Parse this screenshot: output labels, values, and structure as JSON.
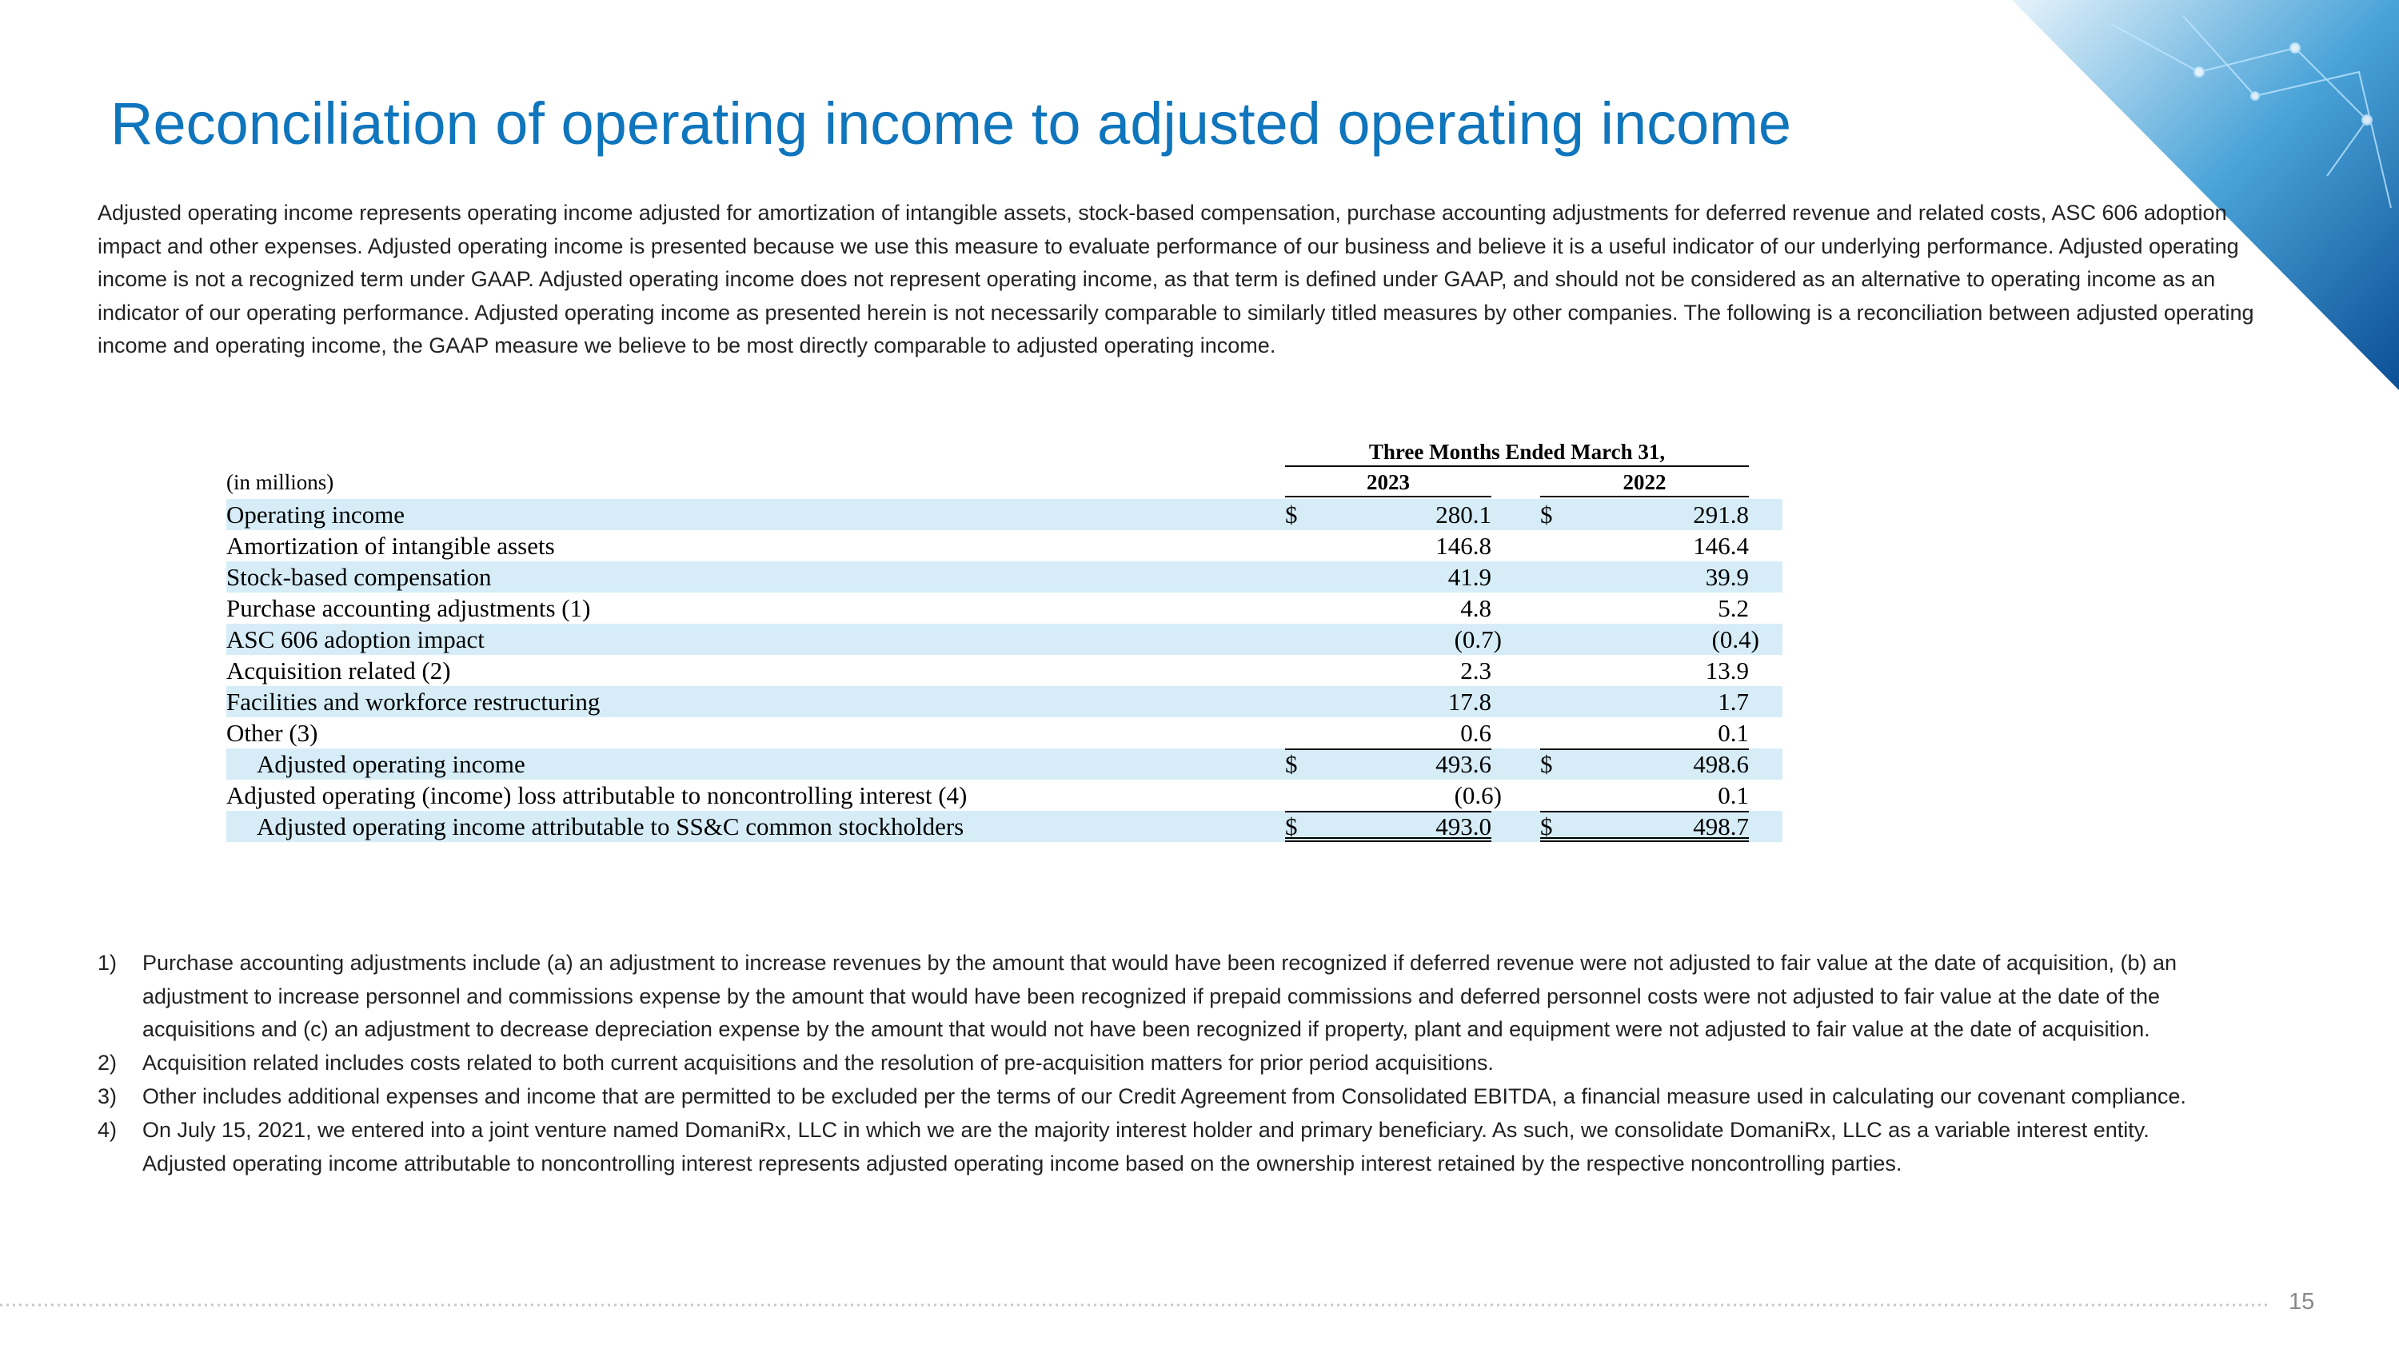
{
  "title": "Reconciliation of operating income to adjusted operating income",
  "intro": "Adjusted operating income represents operating income adjusted for amortization of intangible assets, stock-based compensation, purchase accounting adjustments for deferred revenue and related costs, ASC 606 adoption impact and other expenses.  Adjusted operating income is presented because we use this measure to evaluate performance of our business and believe it is a useful indicator of our underlying performance.  Adjusted operating income is not a recognized term under GAAP.  Adjusted operating income does not represent operating income, as that term is defined under GAAP, and should not be considered as an alternative to operating income as an indicator of our operating performance.  Adjusted operating income as presented herein is not necessarily comparable to similarly titled measures by other companies.  The following is a reconciliation between adjusted operating income and operating income, the GAAP measure we believe to be most directly comparable to adjusted operating income.",
  "table": {
    "period_header": "Three Months Ended March 31,",
    "unit_label": "(in millions)",
    "columns": [
      "2023",
      "2022"
    ],
    "rows": [
      {
        "label": "Operating income",
        "symbols": [
          "$",
          "$"
        ],
        "values": [
          "280.1",
          "291.8"
        ]
      },
      {
        "label": "Amortization of intangible assets",
        "values": [
          "146.8",
          "146.4"
        ]
      },
      {
        "label": "Stock-based compensation",
        "values": [
          "41.9",
          "39.9"
        ]
      },
      {
        "label": "Purchase accounting adjustments (1)",
        "values": [
          "4.8",
          "5.2"
        ]
      },
      {
        "label": "ASC 606 adoption impact",
        "values": [
          "(0.7)",
          "(0.4)"
        ]
      },
      {
        "label": "Acquisition related (2)",
        "values": [
          "2.3",
          "13.9"
        ]
      },
      {
        "label": "Facilities and workforce restructuring",
        "values": [
          "17.8",
          "1.7"
        ]
      },
      {
        "label": "Other (3)",
        "values": [
          "0.6",
          "0.1"
        ]
      },
      {
        "label": "Adjusted operating income",
        "symbols": [
          "$",
          "$"
        ],
        "values": [
          "493.6",
          "498.6"
        ]
      },
      {
        "label": "Adjusted operating (income) loss attributable to noncontrolling interest (4)",
        "values": [
          "(0.6)",
          "0.1"
        ]
      },
      {
        "label": "Adjusted operating income attributable to SS&C common stockholders",
        "symbols": [
          "$",
          "$"
        ],
        "values": [
          "493.0",
          "498.7"
        ]
      }
    ]
  },
  "footnotes": [
    {
      "marker": "1)",
      "text": "Purchase accounting adjustments include (a) an adjustment to increase revenues by the amount that would have been recognized if deferred revenue were not adjusted to fair value at the date of acquisition, (b) an adjustment to increase personnel and commissions expense by the amount that would have been recognized if prepaid commissions and deferred personnel costs were not adjusted to fair value at the date of the acquisitions and (c) an adjustment to decrease depreciation expense by the amount that would not have been recognized if property, plant and equipment were not adjusted to fair value at the date of acquisition."
    },
    {
      "marker": "2)",
      "text": "Acquisition related includes costs related to both current acquisitions and the resolution of pre-acquisition matters for prior period acquisitions."
    },
    {
      "marker": "3)",
      "text": "Other includes additional expenses and income that are permitted to be excluded per the terms of our Credit Agreement from Consolidated EBITDA, a financial measure used in calculating our covenant compliance."
    },
    {
      "marker": "4)",
      "text": "On July 15, 2021, we entered into a joint venture named DomaniRx, LLC in which we are the majority interest holder and primary beneficiary. As such, we consolidate DomaniRx, LLC as a variable interest entity. Adjusted operating income  attributable to noncontrolling interest represents adjusted operating income based on the ownership interest retained by the respective noncontrolling parties."
    }
  ],
  "page_number": "15"
}
